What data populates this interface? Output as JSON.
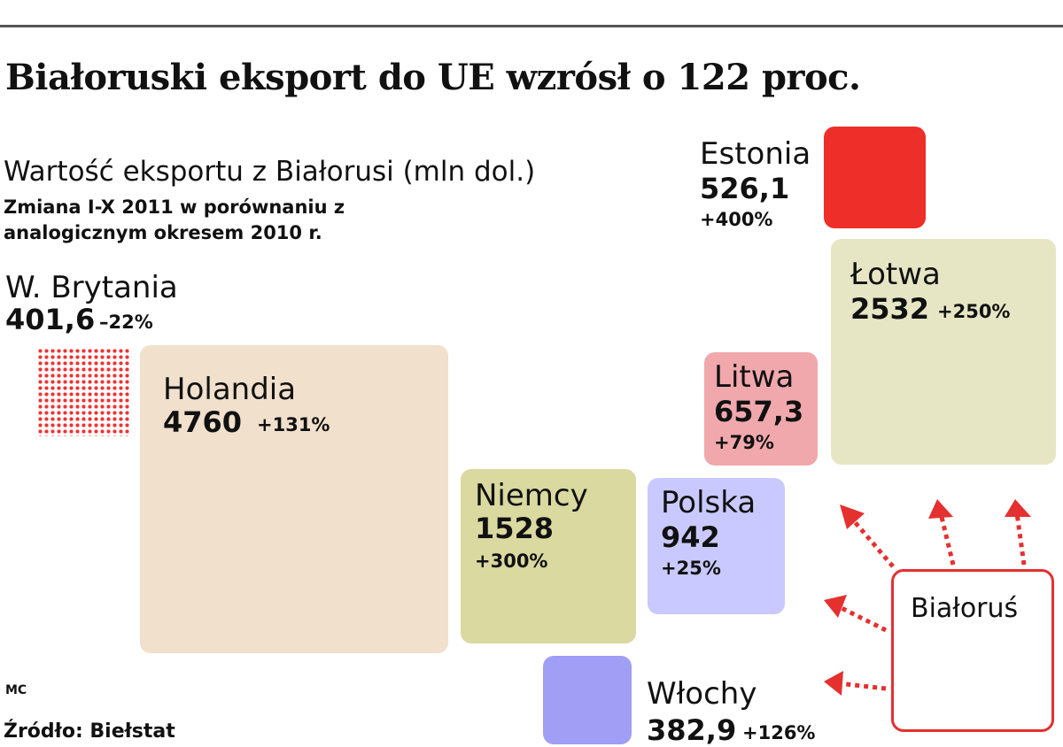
{
  "title": "Białoruski eksport do UE wzrósł o 122 proc.",
  "subtitle": "Wartość eksportu z Białorusi (mln dol.)",
  "note": "Zmiana  I-X 2011 w porównaniu z analogicznym okresem 2010 r.",
  "credit": "MC",
  "source": "Źródło: Biełstat",
  "origin": "Białoruś",
  "colors": {
    "holandia": "#f0e0cc",
    "niemcy": "#d9d9a0",
    "polska": "#c9c9ff",
    "wlochy": "#a09ef5",
    "litwa": "#f0a8ac",
    "lotwa": "#e6e6c4",
    "estonia": "#ee2e28",
    "w_brytania": "#e53030",
    "arrow": "#e53030"
  },
  "chart_data": {
    "type": "treemap",
    "title": "Białoruski eksport do UE wzrósł o 122 proc.",
    "unit": "mln dol.",
    "countries": [
      {
        "name": "W. Brytania",
        "value": 401.6,
        "value_label": "401,6",
        "change": "–22%"
      },
      {
        "name": "Holandia",
        "value": 4760,
        "value_label": "4760",
        "change": "+131%"
      },
      {
        "name": "Niemcy",
        "value": 1528,
        "value_label": "1528",
        "change": "+300%"
      },
      {
        "name": "Polska",
        "value": 942,
        "value_label": "942",
        "change": "+25%"
      },
      {
        "name": "Włochy",
        "value": 382.9,
        "value_label": "382,9",
        "change": "+126%"
      },
      {
        "name": "Litwa",
        "value": 657.3,
        "value_label": "657,3",
        "change": "+79%"
      },
      {
        "name": "Łotwa",
        "value": 2532,
        "value_label": "2532",
        "change": "+250%"
      },
      {
        "name": "Estonia",
        "value": 526.1,
        "value_label": "526,1",
        "change": "+400%"
      }
    ]
  }
}
